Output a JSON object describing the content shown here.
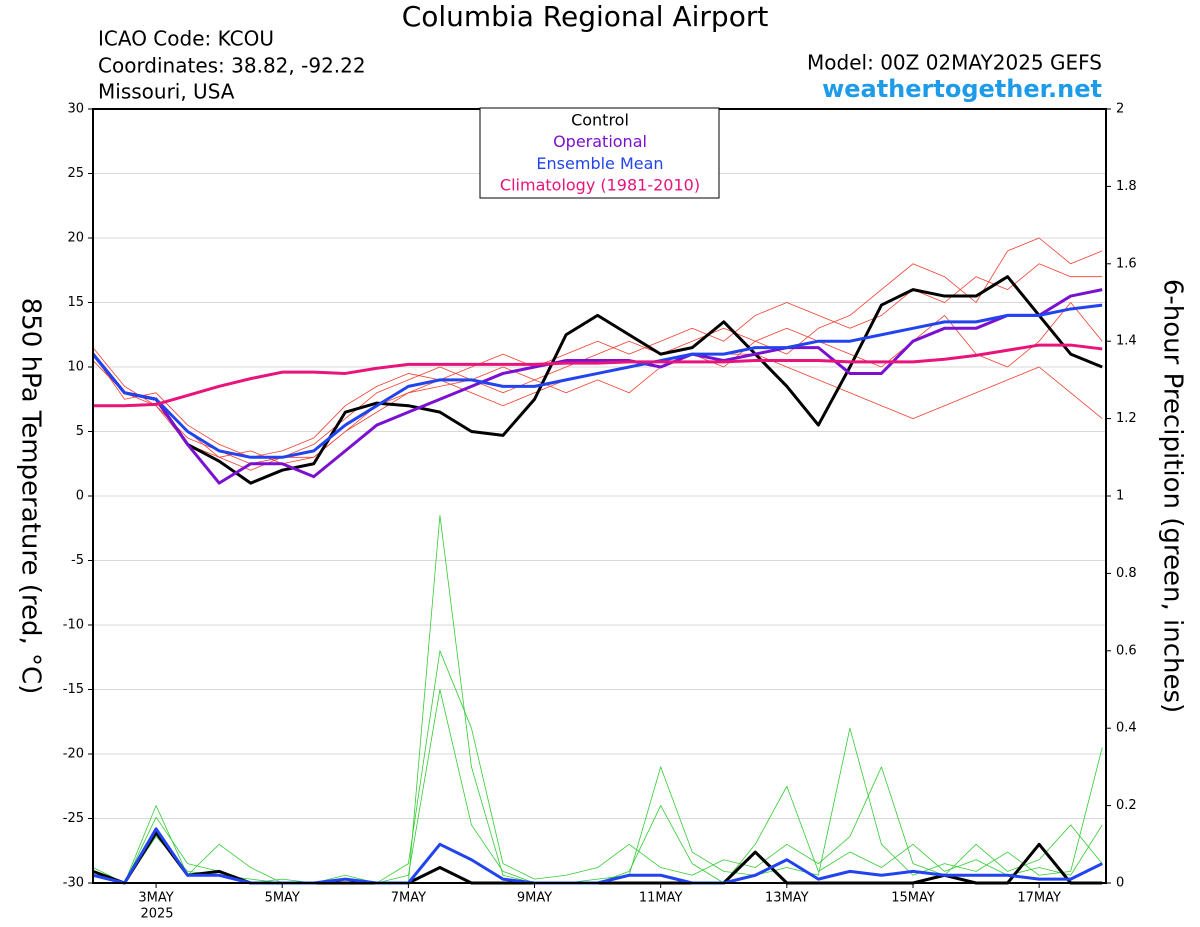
{
  "chart_data": {
    "type": "line",
    "title": "Columbia Regional Airport",
    "station": [
      "ICAO Code: KCOU",
      "Coordinates: 38.82, -92.22",
      "Missouri, USA"
    ],
    "model": "Model: 00Z 02MAY2025 GEFS",
    "source": "weathertogether.net",
    "ylabel": "850 hPa Temperature (red, °C)",
    "y2label": "6-hour Precipition (green, inches)",
    "xlabel": "2025",
    "x": [
      2,
      2.5,
      3,
      3.5,
      4,
      4.5,
      5,
      5.5,
      6,
      6.5,
      7,
      7.5,
      8,
      8.5,
      9,
      9.5,
      10,
      10.5,
      11,
      11.5,
      12,
      12.5,
      13,
      13.5,
      14,
      14.5,
      15,
      15.5,
      16,
      16.5,
      17,
      17.5,
      18
    ],
    "xlim": [
      2,
      18.06
    ],
    "xticks": [
      {
        "value": 3,
        "label": "3MAY"
      },
      {
        "value": 5,
        "label": "5MAY"
      },
      {
        "value": 7,
        "label": "7MAY"
      },
      {
        "value": 9,
        "label": "9MAY"
      },
      {
        "value": 11,
        "label": "11MAY"
      },
      {
        "value": 13,
        "label": "13MAY"
      },
      {
        "value": 15,
        "label": "15MAY"
      },
      {
        "value": 17,
        "label": "17MAY"
      }
    ],
    "ylim": [
      -30,
      30
    ],
    "yticks": [
      -30,
      -25,
      -20,
      -15,
      -10,
      -5,
      0,
      5,
      10,
      15,
      20,
      25,
      30
    ],
    "y2lim": [
      0,
      2
    ],
    "y2ticks": [
      0,
      0.2,
      0.4,
      0.6,
      0.8,
      1,
      1.2,
      1.4,
      1.6,
      1.8,
      2
    ],
    "grid": true,
    "series": [
      {
        "name": "Control",
        "color": "#000000",
        "values": [
          11,
          8,
          7.5,
          4,
          2.7,
          1,
          2,
          2.5,
          6.5,
          7.2,
          7,
          6.5,
          5,
          4.7,
          7.5,
          12.5,
          14,
          12.5,
          11,
          11.5,
          13.5,
          11,
          8.5,
          5.5,
          10,
          14.8,
          16,
          15.5,
          15.5,
          17,
          14,
          11,
          10
        ]
      },
      {
        "name": "Operational",
        "color": "#7a10d0",
        "values": [
          11,
          8,
          7.5,
          4,
          1,
          2.5,
          2.5,
          1.5,
          3.5,
          5.5,
          6.5,
          7.5,
          8.5,
          9.5,
          10,
          10.5,
          10.5,
          10.5,
          10,
          11,
          10.5,
          11,
          11.5,
          11.5,
          9.5,
          9.5,
          12,
          13,
          13,
          14,
          14,
          15.5,
          16
        ]
      },
      {
        "name": "Ensemble Mean",
        "color": "#2244ee",
        "values": [
          11,
          8,
          7.5,
          5,
          3.5,
          3,
          3,
          3.5,
          5.5,
          7,
          8.5,
          9,
          9,
          8.5,
          8.5,
          9,
          9.5,
          10,
          10.5,
          11,
          11,
          11.5,
          11.5,
          12,
          12,
          12.5,
          13,
          13.5,
          13.5,
          14,
          14,
          14.5,
          14.8
        ]
      },
      {
        "name": "Climatology (1981-2010)",
        "color": "#e8147a",
        "values": [
          7,
          7,
          7.1,
          7.8,
          8.5,
          9.1,
          9.6,
          9.6,
          9.5,
          9.9,
          10.2,
          10.2,
          10.2,
          10.2,
          10.2,
          10.3,
          10.3,
          10.4,
          10.4,
          10.4,
          10.4,
          10.5,
          10.5,
          10.5,
          10.4,
          10.4,
          10.4,
          10.6,
          10.9,
          11.3,
          11.7,
          11.7,
          11.4
        ]
      },
      {
        "color": "#000000",
        "axis": "y2",
        "values": [
          0.03,
          0,
          0.13,
          0.02,
          0.03,
          0,
          0,
          0,
          0,
          0,
          0,
          0.04,
          0,
          0,
          0,
          0,
          0,
          0,
          0,
          0,
          0,
          0.08,
          0,
          0,
          0,
          0,
          0,
          0.02,
          0,
          0,
          0.1,
          0,
          0
        ]
      },
      {
        "color": "#2244ee",
        "axis": "y2",
        "values": [
          0.02,
          0,
          0.14,
          0.02,
          0.02,
          0,
          0,
          0,
          0.01,
          0,
          0,
          0.1,
          0.06,
          0.01,
          0,
          0,
          0,
          0.02,
          0.02,
          0,
          0,
          0.02,
          0.06,
          0.01,
          0.03,
          0.02,
          0.03,
          0.02,
          0.02,
          0.02,
          0.01,
          0.01,
          0.05
        ]
      }
    ],
    "ensemble_members": [
      {
        "color": "#f04030",
        "values": [
          11.5,
          8.5,
          7,
          4.5,
          3.5,
          2.5,
          3,
          4,
          6,
          8,
          9,
          10,
          9,
          8,
          9,
          10,
          11,
          12,
          11,
          12,
          13,
          12,
          11,
          13,
          14,
          16,
          18,
          17,
          15,
          19,
          20,
          18,
          19
        ]
      },
      {
        "color": "#f04030",
        "values": [
          10.5,
          8,
          7.5,
          5,
          3,
          3.5,
          2.5,
          3,
          5,
          7,
          8,
          8.5,
          9,
          10,
          9,
          8,
          9,
          8,
          10,
          11,
          10,
          12,
          13,
          12,
          11,
          10,
          12,
          14,
          11,
          10,
          12,
          15,
          12
        ]
      },
      {
        "color": "#f04030",
        "values": [
          11,
          7.5,
          8,
          5.5,
          4,
          3,
          3.5,
          4.5,
          7,
          8.5,
          9.5,
          9,
          10,
          11,
          10,
          11,
          12,
          11,
          12,
          13,
          12,
          14,
          15,
          14,
          13,
          14,
          16,
          15,
          17,
          16,
          18,
          17,
          17
        ]
      },
      {
        "color": "#f04030",
        "values": [
          11,
          8,
          7,
          4,
          3,
          2,
          3,
          3,
          5,
          6.5,
          8,
          9,
          8,
          7,
          8,
          9,
          9.5,
          10,
          10.5,
          11,
          11,
          11,
          10,
          9,
          8,
          7,
          6,
          7,
          8,
          9,
          10,
          8,
          6
        ]
      },
      {
        "color": "#33cc33",
        "axis": "y2",
        "values": [
          0.04,
          0,
          0.2,
          0.02,
          0.1,
          0.04,
          0,
          0,
          0.01,
          0,
          0,
          0.95,
          0.3,
          0.02,
          0,
          0,
          0,
          0.03,
          0.2,
          0.05,
          0,
          0.1,
          0.25,
          0.03,
          0.08,
          0.04,
          0.1,
          0.03,
          0.06,
          0.02,
          0.04,
          0.02,
          0.15
        ]
      },
      {
        "color": "#33cc33",
        "axis": "y2",
        "values": [
          0.02,
          0,
          0.17,
          0.05,
          0.03,
          0,
          0.01,
          0,
          0.02,
          0,
          0.05,
          0.6,
          0.4,
          0.05,
          0.01,
          0.02,
          0.04,
          0.1,
          0.04,
          0.02,
          0.06,
          0.04,
          0.1,
          0.05,
          0.12,
          0.3,
          0.05,
          0.02,
          0.1,
          0.03,
          0.06,
          0.15,
          0.05
        ]
      },
      {
        "color": "#33cc33",
        "axis": "y2",
        "values": [
          0.03,
          0,
          0.12,
          0.03,
          0.02,
          0.01,
          0,
          0,
          0,
          0,
          0.02,
          0.5,
          0.15,
          0.03,
          0,
          0,
          0.01,
          0.02,
          0.3,
          0.08,
          0.03,
          0.02,
          0.04,
          0.02,
          0.4,
          0.1,
          0.02,
          0.05,
          0.03,
          0.08,
          0.02,
          0.03,
          0.35
        ]
      }
    ]
  }
}
